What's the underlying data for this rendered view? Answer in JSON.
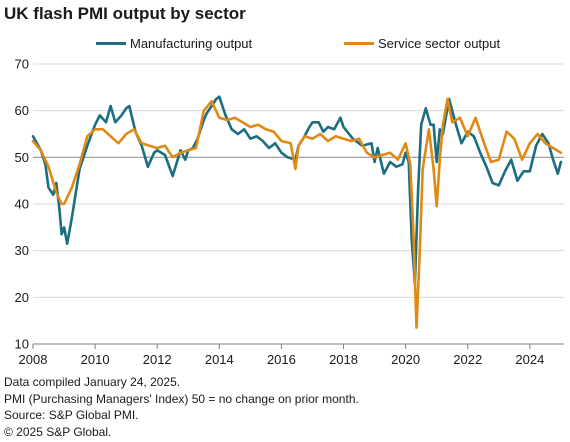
{
  "title": "UK flash PMI output by sector",
  "footnotes": {
    "line1": "Data compiled January 24, 2025.",
    "line2": "PMI (Purchasing Managers' Index) 50 = no change on prior month.",
    "line3": "Source: S&P Global PMI.",
    "line4": "© 2025 S&P Global."
  },
  "colors": {
    "manufacturing": "#1b6e80",
    "services": "#e08a14",
    "reference_line": "#9a9a9a",
    "gridline": "#d9d9d9",
    "axis_text": "#1a1a1a"
  },
  "chart_data": {
    "type": "line",
    "title": "UK flash PMI output by sector",
    "xlabel": "",
    "ylabel": "",
    "xlim": [
      2008,
      2025.1
    ],
    "ylim": [
      10,
      70
    ],
    "x_ticks": [
      "2008",
      "2010",
      "2012",
      "2014",
      "2016",
      "2018",
      "2020",
      "2022",
      "2024"
    ],
    "y_ticks": [
      "10",
      "20",
      "30",
      "40",
      "50",
      "60",
      "70"
    ],
    "grid": "horizontal",
    "reference_line": 50,
    "legend_position": "top",
    "series": [
      {
        "name": "Manufacturing output",
        "color": "#1b6e80",
        "x": [
          2008.0,
          2008.25,
          2008.4,
          2008.5,
          2008.65,
          2008.75,
          2008.85,
          2008.92,
          2009.0,
          2009.1,
          2009.25,
          2009.5,
          2009.75,
          2010.0,
          2010.15,
          2010.35,
          2010.5,
          2010.65,
          2010.85,
          2011.0,
          2011.1,
          2011.3,
          2011.5,
          2011.7,
          2011.9,
          2012.0,
          2012.25,
          2012.5,
          2012.75,
          2012.9,
          2013.0,
          2013.15,
          2013.3,
          2013.5,
          2013.6,
          2013.75,
          2013.9,
          2014.0,
          2014.2,
          2014.4,
          2014.6,
          2014.8,
          2015.0,
          2015.2,
          2015.4,
          2015.6,
          2015.8,
          2016.0,
          2016.2,
          2016.45,
          2016.55,
          2016.7,
          2016.9,
          2017.0,
          2017.2,
          2017.35,
          2017.5,
          2017.7,
          2017.9,
          2018.0,
          2018.3,
          2018.6,
          2018.9,
          2019.0,
          2019.1,
          2019.3,
          2019.5,
          2019.7,
          2019.9,
          2020.0,
          2020.1,
          2020.2,
          2020.3,
          2020.4,
          2020.5,
          2020.65,
          2020.8,
          2020.9,
          2021.0,
          2021.1,
          2021.2,
          2021.4,
          2021.6,
          2021.8,
          2022.0,
          2022.2,
          2022.4,
          2022.6,
          2022.8,
          2023.0,
          2023.2,
          2023.4,
          2023.6,
          2023.8,
          2024.0,
          2024.2,
          2024.4,
          2024.6,
          2024.75,
          2024.9,
          2025.0
        ],
        "values": [
          54.5,
          51.5,
          48.5,
          43.5,
          42.0,
          44.5,
          39.0,
          33.5,
          35.0,
          31.5,
          37.0,
          47.5,
          52.5,
          57.0,
          59.0,
          57.5,
          61.0,
          57.5,
          59.0,
          60.5,
          61.0,
          55.5,
          52.5,
          48.0,
          51.0,
          51.5,
          50.5,
          46.0,
          51.5,
          49.5,
          51.5,
          52.0,
          54.0,
          58.0,
          59.5,
          61.0,
          62.5,
          63.0,
          59.0,
          56.0,
          55.0,
          56.0,
          54.0,
          54.5,
          53.5,
          52.0,
          53.0,
          51.0,
          50.0,
          49.5,
          52.5,
          54.0,
          56.5,
          57.5,
          57.5,
          55.5,
          56.5,
          56.0,
          58.5,
          56.5,
          54.0,
          52.5,
          53.0,
          49.0,
          52.0,
          46.5,
          49.0,
          48.0,
          48.5,
          51.0,
          49.0,
          32.0,
          23.0,
          43.0,
          57.0,
          60.5,
          57.0,
          57.0,
          49.0,
          56.0,
          55.0,
          62.5,
          57.5,
          53.0,
          55.5,
          54.5,
          51.0,
          48.0,
          44.5,
          44.0,
          47.0,
          49.5,
          45.0,
          47.0,
          47.0,
          52.5,
          55.0,
          53.0,
          49.5,
          46.5,
          49.0
        ]
      },
      {
        "name": "Service sector output",
        "color": "#e08a14",
        "x": [
          2008.0,
          2008.25,
          2008.5,
          2008.75,
          2008.92,
          2009.0,
          2009.25,
          2009.5,
          2009.75,
          2010.0,
          2010.25,
          2010.5,
          2010.75,
          2011.0,
          2011.25,
          2011.5,
          2011.75,
          2012.0,
          2012.25,
          2012.5,
          2012.75,
          2013.0,
          2013.25,
          2013.5,
          2013.75,
          2014.0,
          2014.25,
          2014.5,
          2014.75,
          2015.0,
          2015.25,
          2015.5,
          2015.75,
          2016.0,
          2016.3,
          2016.45,
          2016.55,
          2016.75,
          2017.0,
          2017.25,
          2017.5,
          2017.75,
          2018.0,
          2018.25,
          2018.5,
          2018.75,
          2019.0,
          2019.25,
          2019.5,
          2019.75,
          2020.0,
          2020.15,
          2020.25,
          2020.35,
          2020.45,
          2020.55,
          2020.75,
          2020.9,
          2021.0,
          2021.1,
          2021.2,
          2021.35,
          2021.5,
          2021.75,
          2022.0,
          2022.25,
          2022.5,
          2022.75,
          2023.0,
          2023.25,
          2023.5,
          2023.75,
          2024.0,
          2024.25,
          2024.5,
          2024.75,
          2025.0
        ],
        "values": [
          53.5,
          51.5,
          48.0,
          42.5,
          40.0,
          40.0,
          43.5,
          48.5,
          54.5,
          56.0,
          56.0,
          54.5,
          53.0,
          55.0,
          56.0,
          53.0,
          52.5,
          52.0,
          52.5,
          50.0,
          51.0,
          51.5,
          52.0,
          60.0,
          62.0,
          58.5,
          58.0,
          58.5,
          57.5,
          56.5,
          57.0,
          56.0,
          55.5,
          53.5,
          53.0,
          47.5,
          52.5,
          54.5,
          54.0,
          55.0,
          53.5,
          54.5,
          54.0,
          53.5,
          54.0,
          51.0,
          50.0,
          50.5,
          51.0,
          49.5,
          53.0,
          48.5,
          34.0,
          13.5,
          29.0,
          47.5,
          56.0,
          47.5,
          39.5,
          49.5,
          57.0,
          62.5,
          57.5,
          58.5,
          54.5,
          58.5,
          53.5,
          49.0,
          49.5,
          55.5,
          54.0,
          49.5,
          53.0,
          55.0,
          53.0,
          52.0,
          51.0
        ]
      }
    ]
  }
}
